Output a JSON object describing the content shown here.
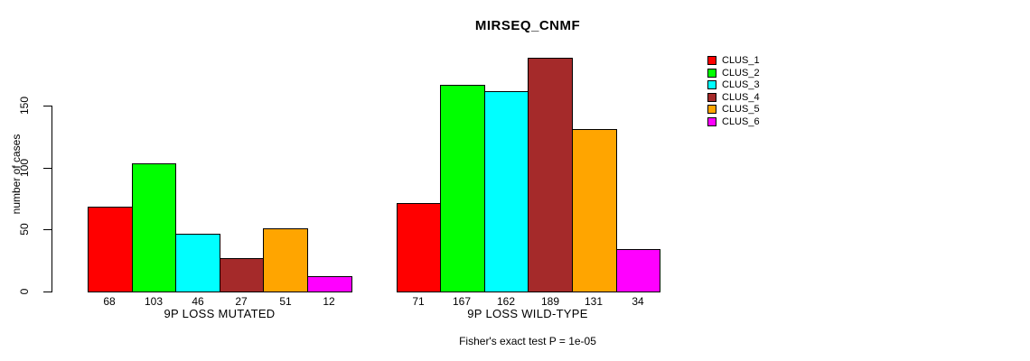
{
  "chart_data": {
    "type": "bar",
    "title": "MIRSEQ_CNMF",
    "ylabel": "number of cases",
    "xlabel": "",
    "caption": "Fisher's exact test P = 1e-05",
    "yticks": [
      0,
      50,
      100,
      150
    ],
    "ylim": [
      0,
      150
    ],
    "grid": false,
    "legend_position": "right",
    "background_color": "#ffffff",
    "bar_border_color": "#000000",
    "show_value_labels": true,
    "clusters": [
      {
        "name": "CLUS_1",
        "color": "#ff0000"
      },
      {
        "name": "CLUS_2",
        "color": "#00ff00"
      },
      {
        "name": "CLUS_3",
        "color": "#00ffff"
      },
      {
        "name": "CLUS_4",
        "color": "#a52a2a"
      },
      {
        "name": "CLUS_5",
        "color": "#ffa500"
      },
      {
        "name": "CLUS_6",
        "color": "#ff00ff"
      }
    ],
    "categories": [
      "9P LOSS MUTATED",
      "9P LOSS WILD-TYPE"
    ],
    "series": [
      {
        "name": "CLUS_1",
        "values": [
          68,
          71
        ]
      },
      {
        "name": "CLUS_2",
        "values": [
          103,
          167
        ]
      },
      {
        "name": "CLUS_3",
        "values": [
          46,
          162
        ]
      },
      {
        "name": "CLUS_4",
        "values": [
          27,
          189
        ]
      },
      {
        "name": "CLUS_5",
        "values": [
          51,
          131
        ]
      },
      {
        "name": "CLUS_6",
        "values": [
          12,
          34
        ]
      }
    ],
    "groups": [
      {
        "label": "9P LOSS MUTATED",
        "values": [
          68,
          103,
          46,
          27,
          51,
          12
        ]
      },
      {
        "label": "9P LOSS WILD-TYPE",
        "values": [
          71,
          167,
          162,
          189,
          131,
          34
        ]
      }
    ]
  }
}
